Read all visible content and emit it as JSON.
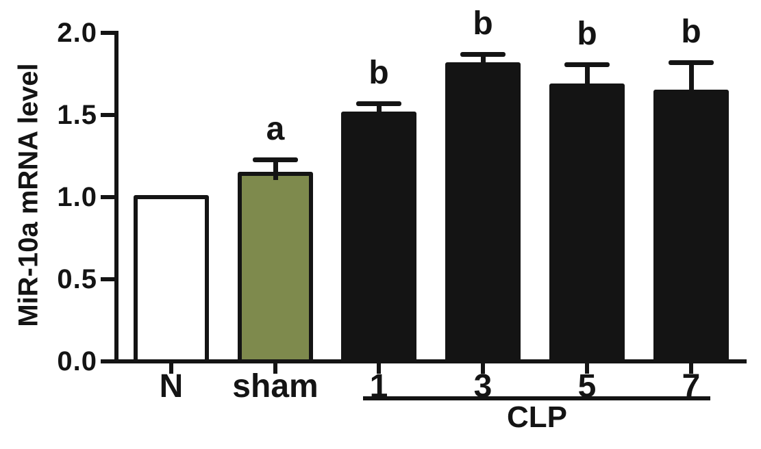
{
  "figure": {
    "background_color": "#ffffff",
    "text_color": "#141414"
  },
  "chart_data": {
    "type": "bar",
    "title": "",
    "xlabel": "",
    "ylabel": "MiR-10a mRNA level",
    "ylim": [
      0.0,
      2.0
    ],
    "yticks": [
      "0.0",
      "0.5",
      "1.0",
      "1.5",
      "2.0"
    ],
    "grid": false,
    "legend": null,
    "categories": [
      "N",
      "sham",
      "1",
      "3",
      "5",
      "7"
    ],
    "values": [
      1.0,
      1.14,
      1.51,
      1.81,
      1.68,
      1.64
    ],
    "errors_plus": [
      0,
      0.09,
      0.06,
      0.06,
      0.13,
      0.18
    ],
    "sig_labels": [
      "",
      "a",
      "b",
      "b",
      "b",
      "b"
    ],
    "bar_fills": [
      "#ffffff",
      "#7e8a4d",
      "#141414",
      "#141414",
      "#141414",
      "#141414"
    ],
    "bar_edge_color": "#141414",
    "axis_color": "#141414",
    "group_annotation": {
      "label": "CLP",
      "start_index": 2,
      "end_index": 5
    }
  }
}
